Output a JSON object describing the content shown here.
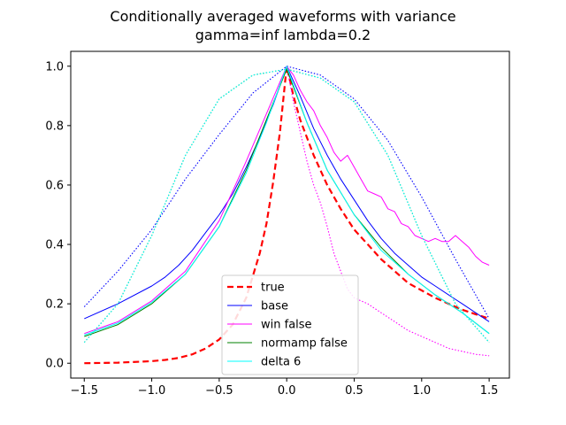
{
  "chart_data": {
    "type": "line",
    "title": "Conditionally averaged waveforms with variance",
    "subtitle": "gamma=inf lambda=0.2",
    "xlabel": "",
    "ylabel": "",
    "xlim": [
      -1.6,
      1.65
    ],
    "ylim": [
      -0.05,
      1.05
    ],
    "x_ticks": [
      -1.5,
      -1.0,
      -0.5,
      0.0,
      0.5,
      1.0,
      1.5
    ],
    "x_tick_labels": [
      "−1.5",
      "−1.0",
      "−0.5",
      "0.0",
      "0.5",
      "1.0",
      "1.5"
    ],
    "y_ticks": [
      0.0,
      0.2,
      0.4,
      0.6,
      0.8,
      1.0
    ],
    "y_tick_labels": [
      "0.0",
      "0.2",
      "0.4",
      "0.6",
      "0.8",
      "1.0"
    ],
    "grid": false,
    "legend_position": "lower-center",
    "series": [
      {
        "name": "true",
        "color": "#ff0000",
        "style": "dashed",
        "legend": true,
        "points": [
          [
            -1.5,
            0.0
          ],
          [
            -1.25,
            0.002
          ],
          [
            -1.0,
            0.007
          ],
          [
            -0.9,
            0.011
          ],
          [
            -0.8,
            0.018
          ],
          [
            -0.7,
            0.03
          ],
          [
            -0.6,
            0.05
          ],
          [
            -0.5,
            0.08
          ],
          [
            -0.4,
            0.13
          ],
          [
            -0.3,
            0.22
          ],
          [
            -0.2,
            0.37
          ],
          [
            -0.15,
            0.47
          ],
          [
            -0.1,
            0.61
          ],
          [
            -0.05,
            0.78
          ],
          [
            0.0,
            1.0
          ],
          [
            0.05,
            0.9
          ],
          [
            0.1,
            0.82
          ],
          [
            0.2,
            0.7
          ],
          [
            0.3,
            0.6
          ],
          [
            0.4,
            0.52
          ],
          [
            0.5,
            0.45
          ],
          [
            0.6,
            0.4
          ],
          [
            0.7,
            0.35
          ],
          [
            0.8,
            0.31
          ],
          [
            0.9,
            0.27
          ],
          [
            1.0,
            0.245
          ],
          [
            1.1,
            0.22
          ],
          [
            1.2,
            0.2
          ],
          [
            1.3,
            0.18
          ],
          [
            1.4,
            0.165
          ],
          [
            1.5,
            0.15
          ]
        ]
      },
      {
        "name": "base",
        "color": "#0000ff",
        "style": "solid",
        "legend": true,
        "points": [
          [
            -1.5,
            0.15
          ],
          [
            -1.25,
            0.2
          ],
          [
            -1.0,
            0.26
          ],
          [
            -0.9,
            0.29
          ],
          [
            -0.8,
            0.33
          ],
          [
            -0.7,
            0.38
          ],
          [
            -0.6,
            0.44
          ],
          [
            -0.5,
            0.5
          ],
          [
            -0.4,
            0.57
          ],
          [
            -0.3,
            0.66
          ],
          [
            -0.2,
            0.76
          ],
          [
            -0.1,
            0.87
          ],
          [
            0.0,
            1.0
          ],
          [
            0.1,
            0.9
          ],
          [
            0.2,
            0.79
          ],
          [
            0.3,
            0.7
          ],
          [
            0.4,
            0.62
          ],
          [
            0.5,
            0.55
          ],
          [
            0.6,
            0.48
          ],
          [
            0.7,
            0.42
          ],
          [
            0.8,
            0.37
          ],
          [
            0.9,
            0.33
          ],
          [
            1.0,
            0.29
          ],
          [
            1.1,
            0.26
          ],
          [
            1.2,
            0.23
          ],
          [
            1.3,
            0.2
          ],
          [
            1.4,
            0.17
          ],
          [
            1.5,
            0.14
          ]
        ]
      },
      {
        "name": "base upper",
        "color": "#0000ff",
        "style": "dotted",
        "legend": false,
        "points": [
          [
            -1.5,
            0.19
          ],
          [
            -1.25,
            0.31
          ],
          [
            -1.0,
            0.45
          ],
          [
            -0.75,
            0.62
          ],
          [
            -0.5,
            0.77
          ],
          [
            -0.25,
            0.91
          ],
          [
            0.0,
            1.0
          ],
          [
            0.25,
            0.97
          ],
          [
            0.5,
            0.89
          ],
          [
            0.75,
            0.75
          ],
          [
            1.0,
            0.56
          ],
          [
            1.25,
            0.35
          ],
          [
            1.5,
            0.15
          ]
        ]
      },
      {
        "name": "win false",
        "color": "#ff00ff",
        "style": "solid",
        "legend": true,
        "points": [
          [
            -1.5,
            0.1
          ],
          [
            -1.25,
            0.14
          ],
          [
            -1.0,
            0.21
          ],
          [
            -0.75,
            0.31
          ],
          [
            -0.5,
            0.48
          ],
          [
            -0.3,
            0.68
          ],
          [
            -0.15,
            0.84
          ],
          [
            0.0,
            1.0
          ],
          [
            0.05,
            0.97
          ],
          [
            0.1,
            0.92
          ],
          [
            0.15,
            0.88
          ],
          [
            0.2,
            0.85
          ],
          [
            0.25,
            0.8
          ],
          [
            0.3,
            0.76
          ],
          [
            0.35,
            0.71
          ],
          [
            0.4,
            0.68
          ],
          [
            0.45,
            0.7
          ],
          [
            0.5,
            0.66
          ],
          [
            0.55,
            0.62
          ],
          [
            0.6,
            0.58
          ],
          [
            0.65,
            0.57
          ],
          [
            0.7,
            0.56
          ],
          [
            0.75,
            0.52
          ],
          [
            0.8,
            0.51
          ],
          [
            0.85,
            0.47
          ],
          [
            0.9,
            0.46
          ],
          [
            0.95,
            0.43
          ],
          [
            1.0,
            0.42
          ],
          [
            1.05,
            0.41
          ],
          [
            1.1,
            0.42
          ],
          [
            1.15,
            0.41
          ],
          [
            1.2,
            0.41
          ],
          [
            1.25,
            0.43
          ],
          [
            1.3,
            0.41
          ],
          [
            1.35,
            0.39
          ],
          [
            1.4,
            0.36
          ],
          [
            1.45,
            0.34
          ],
          [
            1.5,
            0.33
          ]
        ]
      },
      {
        "name": "win false lower",
        "color": "#ff00ff",
        "style": "dotted",
        "legend": false,
        "points": [
          [
            0.0,
            1.0
          ],
          [
            0.05,
            0.88
          ],
          [
            0.1,
            0.78
          ],
          [
            0.15,
            0.68
          ],
          [
            0.2,
            0.6
          ],
          [
            0.25,
            0.54
          ],
          [
            0.3,
            0.46
          ],
          [
            0.35,
            0.37
          ],
          [
            0.4,
            0.31
          ],
          [
            0.45,
            0.25
          ],
          [
            0.5,
            0.22
          ],
          [
            0.6,
            0.2
          ],
          [
            0.7,
            0.17
          ],
          [
            0.8,
            0.14
          ],
          [
            0.9,
            0.11
          ],
          [
            1.0,
            0.09
          ],
          [
            1.1,
            0.07
          ],
          [
            1.2,
            0.05
          ],
          [
            1.3,
            0.04
          ],
          [
            1.4,
            0.03
          ],
          [
            1.5,
            0.025
          ]
        ]
      },
      {
        "name": "normamp false",
        "color": "#008000",
        "style": "solid",
        "legend": true,
        "points": [
          [
            -1.5,
            0.09
          ],
          [
            -1.25,
            0.13
          ],
          [
            -1.0,
            0.2
          ],
          [
            -0.75,
            0.3
          ],
          [
            -0.5,
            0.46
          ],
          [
            -0.3,
            0.65
          ],
          [
            -0.15,
            0.82
          ],
          [
            0.0,
            0.99
          ],
          [
            0.15,
            0.81
          ],
          [
            0.3,
            0.65
          ],
          [
            0.5,
            0.5
          ],
          [
            0.7,
            0.39
          ],
          [
            0.9,
            0.3
          ],
          [
            1.1,
            0.23
          ],
          [
            1.3,
            0.17
          ],
          [
            1.5,
            0.1
          ]
        ]
      },
      {
        "name": "normamp false upper",
        "color": "#008000",
        "style": "dotted",
        "legend": false,
        "points": [
          [
            -1.5,
            0.07
          ],
          [
            -1.25,
            0.2
          ],
          [
            -1.0,
            0.43
          ],
          [
            -0.75,
            0.7
          ],
          [
            -0.5,
            0.89
          ],
          [
            -0.25,
            0.97
          ],
          [
            0.0,
            0.99
          ],
          [
            0.25,
            0.96
          ],
          [
            0.5,
            0.88
          ],
          [
            0.75,
            0.7
          ],
          [
            1.0,
            0.43
          ],
          [
            1.25,
            0.2
          ],
          [
            1.5,
            0.07
          ]
        ]
      },
      {
        "name": "delta 6",
        "color": "#00ffff",
        "style": "solid",
        "legend": true,
        "points": [
          [
            -1.5,
            0.095
          ],
          [
            -1.25,
            0.135
          ],
          [
            -1.0,
            0.205
          ],
          [
            -0.75,
            0.3
          ],
          [
            -0.5,
            0.46
          ],
          [
            -0.3,
            0.64
          ],
          [
            -0.15,
            0.81
          ],
          [
            0.0,
            1.0
          ],
          [
            0.15,
            0.81
          ],
          [
            0.3,
            0.65
          ],
          [
            0.5,
            0.5
          ],
          [
            0.7,
            0.38
          ],
          [
            0.9,
            0.3
          ],
          [
            1.1,
            0.23
          ],
          [
            1.3,
            0.17
          ],
          [
            1.5,
            0.1
          ]
        ]
      },
      {
        "name": "delta 6 upper",
        "color": "#00ffff",
        "style": "dotted",
        "legend": false,
        "points": [
          [
            -1.5,
            0.07
          ],
          [
            -1.25,
            0.2
          ],
          [
            -1.0,
            0.43
          ],
          [
            -0.75,
            0.7
          ],
          [
            -0.5,
            0.89
          ],
          [
            -0.25,
            0.97
          ],
          [
            0.0,
            0.99
          ],
          [
            0.25,
            0.96
          ],
          [
            0.5,
            0.88
          ],
          [
            0.75,
            0.7
          ],
          [
            1.0,
            0.43
          ],
          [
            1.25,
            0.2
          ],
          [
            1.5,
            0.07
          ]
        ]
      }
    ]
  }
}
